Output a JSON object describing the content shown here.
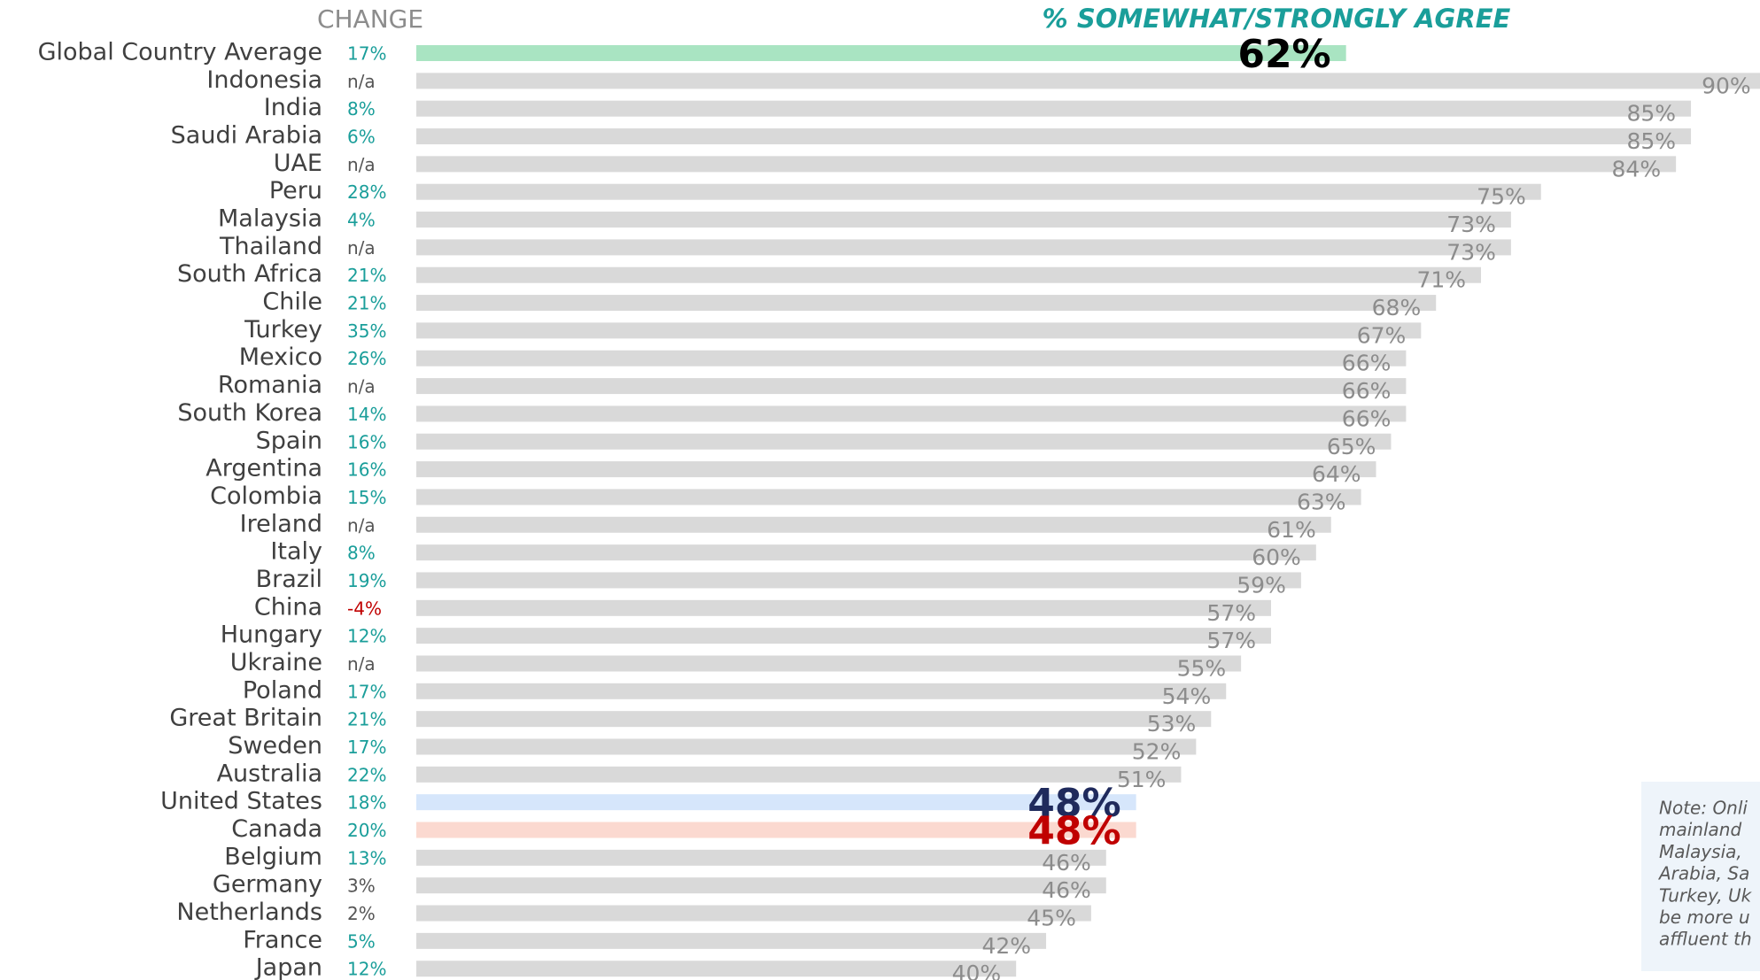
{
  "chart_data": {
    "type": "bar",
    "title": "% SOMEWHAT/STRONGLY AGREE",
    "change_title": "CHANGE",
    "categories": [
      "Global Country Average",
      "Indonesia",
      "India",
      "Saudi Arabia",
      "UAE",
      "Peru",
      "Malaysia",
      "Thailand",
      "South Africa",
      "Chile",
      "Turkey",
      "Mexico",
      "Romania",
      "South Korea",
      "Spain",
      "Argentina",
      "Colombia",
      "Ireland",
      "Italy",
      "Brazil",
      "China",
      "Hungary",
      "Ukraine",
      "Poland",
      "Great Britain",
      "Sweden",
      "Australia",
      "United States",
      "Canada",
      "Belgium",
      "Germany",
      "Netherlands",
      "France",
      "Japan"
    ],
    "values": [
      62,
      90,
      85,
      85,
      84,
      75,
      73,
      73,
      71,
      68,
      67,
      66,
      66,
      66,
      65,
      64,
      63,
      61,
      60,
      59,
      57,
      57,
      55,
      54,
      53,
      52,
      51,
      48,
      48,
      46,
      46,
      45,
      42,
      40
    ],
    "value_labels": [
      "62%",
      "90%",
      "85%",
      "85%",
      "84%",
      "75%",
      "73%",
      "73%",
      "71%",
      "68%",
      "67%",
      "66%",
      "66%",
      "66%",
      "65%",
      "64%",
      "63%",
      "61%",
      "60%",
      "59%",
      "57%",
      "57%",
      "55%",
      "54%",
      "53%",
      "52%",
      "51%",
      "48%",
      "48%",
      "46%",
      "46%",
      "45%",
      "42%",
      "40%"
    ],
    "change": [
      "17%",
      "n/a",
      "8%",
      "6%",
      "n/a",
      "28%",
      "4%",
      "n/a",
      "21%",
      "21%",
      "35%",
      "26%",
      "n/a",
      "14%",
      "16%",
      "16%",
      "15%",
      "n/a",
      "8%",
      "19%",
      "-4%",
      "12%",
      "n/a",
      "17%",
      "21%",
      "17%",
      "22%",
      "18%",
      "20%",
      "13%",
      "3%",
      "2%",
      "5%",
      "12%"
    ],
    "change_colors": [
      "#1a9e9a",
      "#555555",
      "#1a9e9a",
      "#1a9e9a",
      "#555555",
      "#1a9e9a",
      "#1a9e9a",
      "#555555",
      "#1a9e9a",
      "#1a9e9a",
      "#1a9e9a",
      "#1a9e9a",
      "#555555",
      "#1a9e9a",
      "#1a9e9a",
      "#1a9e9a",
      "#1a9e9a",
      "#555555",
      "#1a9e9a",
      "#1a9e9a",
      "#c00000",
      "#1a9e9a",
      "#555555",
      "#1a9e9a",
      "#1a9e9a",
      "#1a9e9a",
      "#1a9e9a",
      "#1a9e9a",
      "#1a9e9a",
      "#1a9e9a",
      "#555555",
      "#555555",
      "#1a9e9a",
      "#1a9e9a"
    ],
    "color": "#d9d9d9",
    "colors": [
      "#a9e4c2",
      "#d9d9d9",
      "#d9d9d9",
      "#d9d9d9",
      "#d9d9d9",
      "#d9d9d9",
      "#d9d9d9",
      "#d9d9d9",
      "#d9d9d9",
      "#d9d9d9",
      "#d9d9d9",
      "#d9d9d9",
      "#d9d9d9",
      "#d9d9d9",
      "#d9d9d9",
      "#d9d9d9",
      "#d9d9d9",
      "#d9d9d9",
      "#d9d9d9",
      "#d9d9d9",
      "#d9d9d9",
      "#d9d9d9",
      "#d9d9d9",
      "#d9d9d9",
      "#d9d9d9",
      "#d9d9d9",
      "#d9d9d9",
      "#d6e6fb",
      "#fbd9d0",
      "#d9d9d9",
      "#d9d9d9",
      "#d9d9d9",
      "#d9d9d9",
      "#d9d9d9"
    ],
    "label_color": "#8c8c8c",
    "label_colors": [
      "#000000",
      "#8c8c8c",
      "#8c8c8c",
      "#8c8c8c",
      "#8c8c8c",
      "#8c8c8c",
      "#8c8c8c",
      "#8c8c8c",
      "#8c8c8c",
      "#8c8c8c",
      "#8c8c8c",
      "#8c8c8c",
      "#8c8c8c",
      "#8c8c8c",
      "#8c8c8c",
      "#8c8c8c",
      "#8c8c8c",
      "#8c8c8c",
      "#8c8c8c",
      "#8c8c8c",
      "#8c8c8c",
      "#8c8c8c",
      "#8c8c8c",
      "#8c8c8c",
      "#8c8c8c",
      "#8c8c8c",
      "#8c8c8c",
      "#1f2a5c",
      "#c00000",
      "#8c8c8c",
      "#8c8c8c",
      "#8c8c8c",
      "#8c8c8c",
      "#8c8c8c"
    ],
    "xlim": [
      0,
      100
    ],
    "note": [
      "Note: Onli",
      "mainland",
      "Malaysia,",
      "Arabia, Sa",
      "Turkey, Uk",
      "be more u",
      "affluent th"
    ]
  }
}
